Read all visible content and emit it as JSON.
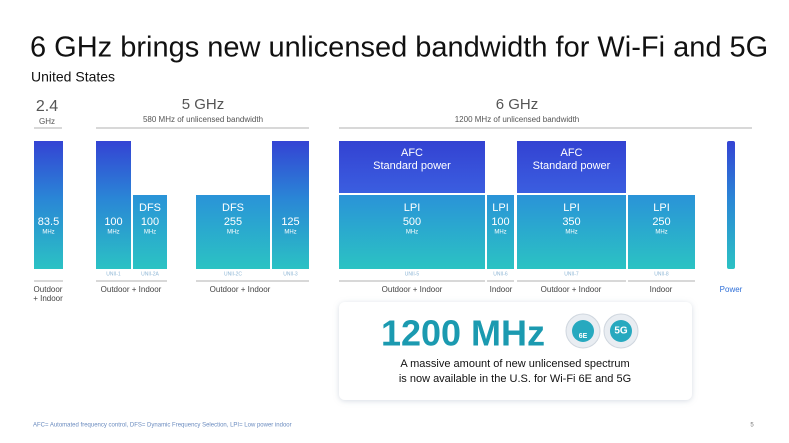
{
  "header": {
    "title": "6 GHz brings new unlicensed bandwidth for Wi-Fi and 5G",
    "subtitle": "United States"
  },
  "bands": [
    {
      "label": "2.4",
      "sublabel": "GHz"
    },
    {
      "label": "5 GHz",
      "sublabel": "580 MHz of unlicensed bandwidth"
    },
    {
      "label": "6 GHz",
      "sublabel": "1200 MHz of unlicensed bandwidth"
    }
  ],
  "blocks": [
    {
      "value": 83.5,
      "unit": "MHz"
    },
    {
      "value": 100,
      "unit": "MHz",
      "tag": "UNII-1"
    },
    {
      "prefix": "DFS",
      "value": 100,
      "unit": "MHz",
      "tag": "UNII-2A"
    },
    {
      "prefix": "DFS",
      "value": 255,
      "unit": "MHz",
      "tag": "UNII-2C"
    },
    {
      "value": 125,
      "unit": "MHz",
      "tag": "UNII-3"
    },
    {
      "prefix": "LPI",
      "value": 500,
      "unit": "MHz",
      "tag": "UNII-5"
    },
    {
      "prefix": "LPI",
      "value": 100,
      "unit": "MHz",
      "tag": "UNII-6"
    },
    {
      "prefix": "LPI",
      "value": 350,
      "unit": "MHz",
      "tag": "UNII-7"
    },
    {
      "prefix": "LPI",
      "value": 250,
      "unit": "MHz",
      "tag": "UNII-8"
    }
  ],
  "afc": [
    {
      "line1": "AFC",
      "line2": "Standard power"
    },
    {
      "line1": "AFC",
      "line2": "Standard power"
    }
  ],
  "usage": [
    {
      "lines": [
        "Outdoor",
        "+ Indoor"
      ]
    },
    {
      "lines": [
        "Outdoor + Indoor"
      ]
    },
    {
      "lines": [
        "Outdoor + Indoor"
      ]
    },
    {
      "lines": [
        "Outdoor + Indoor"
      ]
    },
    {
      "lines": [
        "Indoor"
      ]
    },
    {
      "lines": [
        "Outdoor + Indoor"
      ]
    },
    {
      "lines": [
        "Indoor"
      ]
    },
    {
      "lines": [
        "Power"
      ]
    }
  ],
  "callout": {
    "headline": "1200 MHz",
    "icons": [
      "6E",
      "5G"
    ],
    "text": [
      "A massive amount of new unlicensed spectrum",
      "is now available in the U.S. for Wi-Fi 6E and 5G"
    ]
  },
  "footnote": "AFC= Automated frequency control, DFS= Dynamic Frequency Selection, LPI= Low power indoor",
  "page": 5
}
